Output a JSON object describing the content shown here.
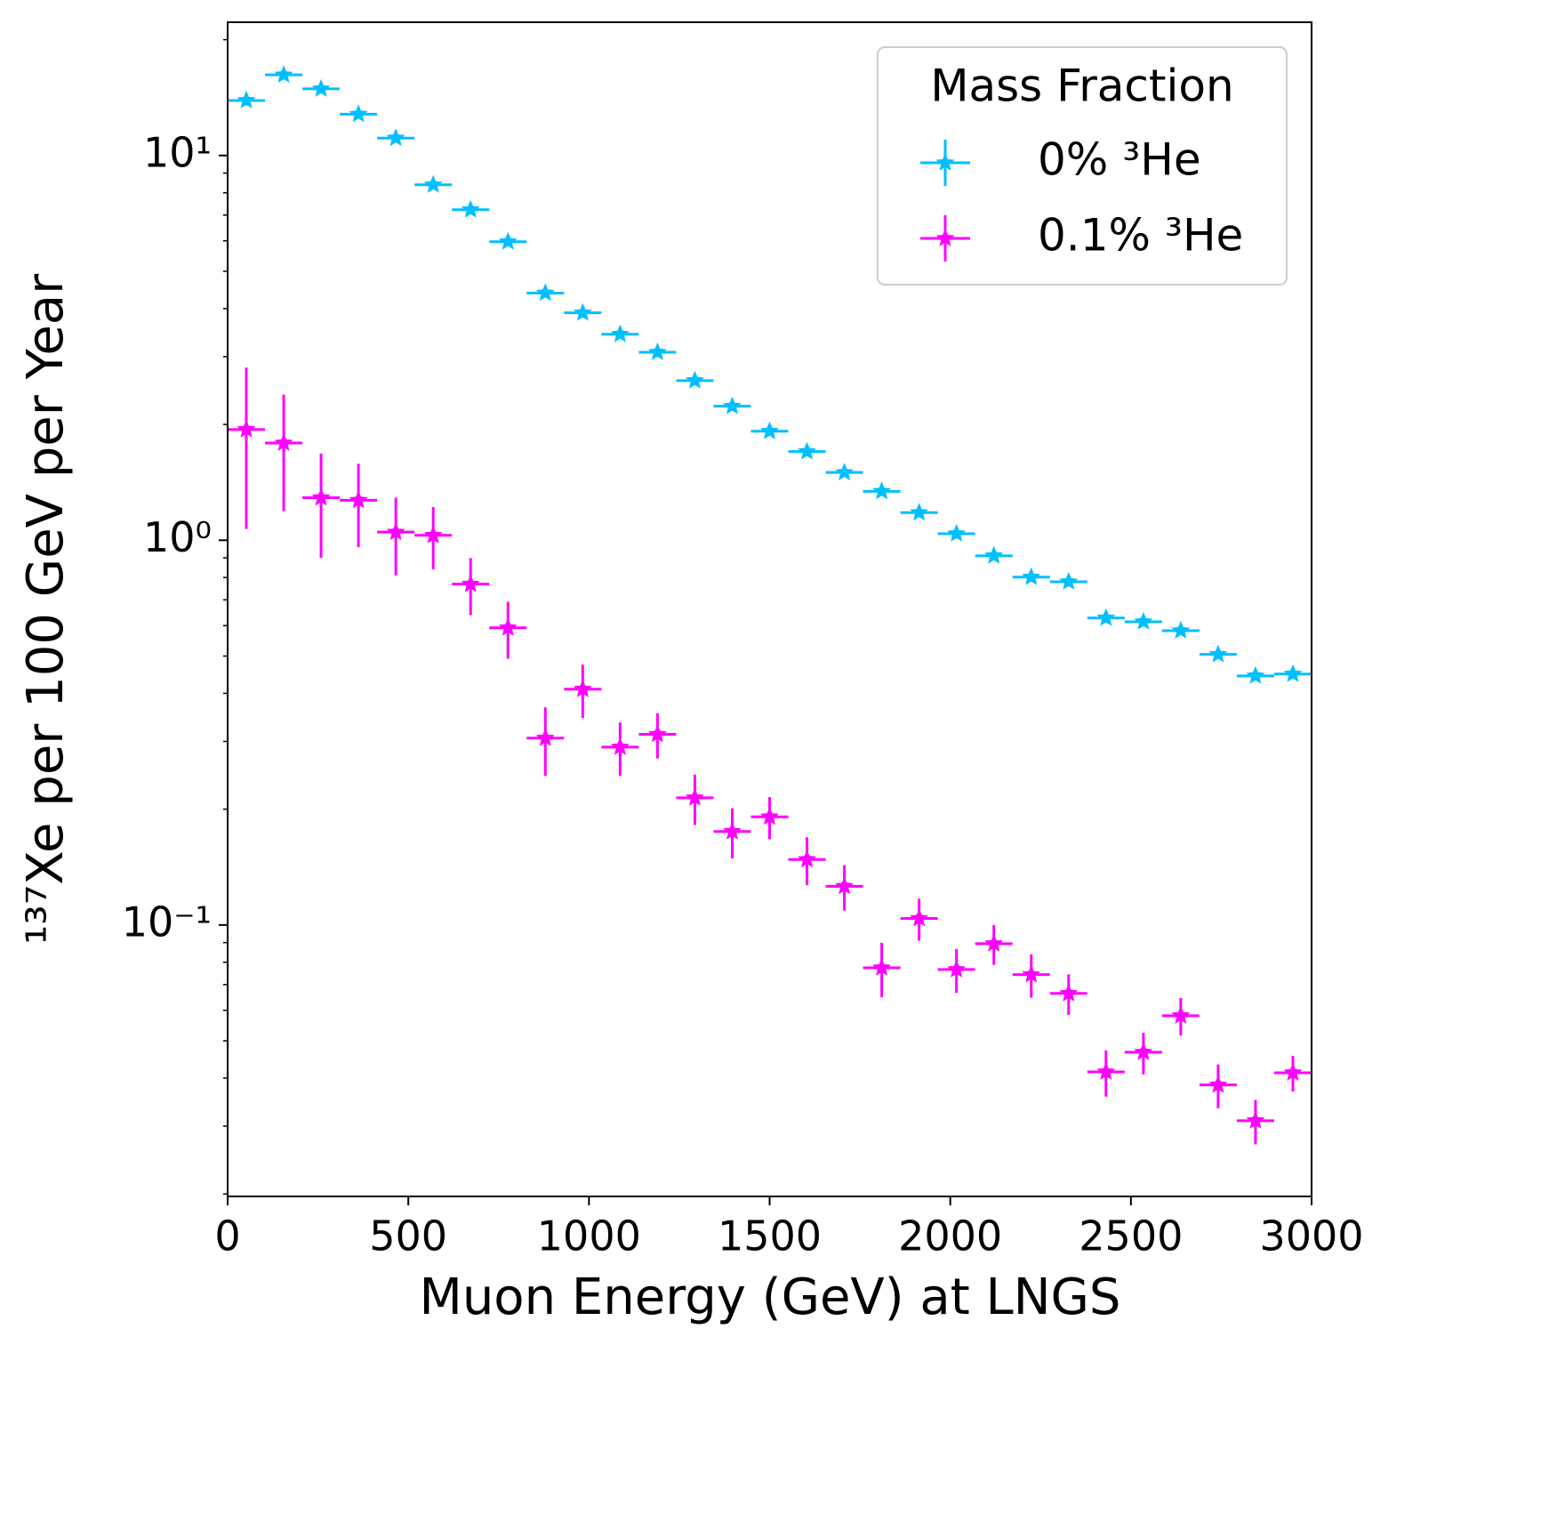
{
  "chart_data": {
    "type": "errorbar",
    "xlabel": "Muon Energy (GeV) at LNGS",
    "ylabel": "¹³⁷Xe per 100 GeV per Year",
    "log_y": true,
    "xlim": [
      0,
      3000
    ],
    "xticks": [
      0,
      500,
      1000,
      1500,
      2000,
      2500,
      3000
    ],
    "ylim": [
      0.0197,
      22.2
    ],
    "yticks": [
      {
        "value": 0.1,
        "label": "10⁻¹"
      },
      {
        "value": 1,
        "label": "10⁰"
      },
      {
        "value": 10,
        "label": "10¹"
      }
    ],
    "yticks_minor": [
      0.02,
      0.03,
      0.04,
      0.05,
      0.06,
      0.07,
      0.08,
      0.09,
      0.2,
      0.3,
      0.4,
      0.5,
      0.6,
      0.7,
      0.8,
      0.9,
      2,
      3,
      4,
      5,
      6,
      7,
      8,
      9,
      20
    ],
    "legend_title": "Mass Fraction",
    "legend_position": "upper right",
    "x": [
      51.7,
      155.2,
      258.6,
      362.1,
      465.5,
      569.0,
      672.4,
      775.9,
      879.3,
      982.8,
      1086.2,
      1189.7,
      1293.1,
      1396.6,
      1500.0,
      1603.4,
      1706.9,
      1810.3,
      1913.8,
      2017.2,
      2120.7,
      2224.1,
      2327.6,
      2431.0,
      2534.5,
      2637.9,
      2741.4,
      2844.8,
      2948.3
    ],
    "xerr": 51.7,
    "series": [
      {
        "name": "0% ³He",
        "color": "#00bfff",
        "values": [
          13.9,
          16.2,
          14.9,
          12.8,
          11.1,
          8.39,
          7.23,
          5.97,
          4.39,
          3.9,
          3.43,
          3.08,
          2.6,
          2.23,
          1.92,
          1.7,
          1.5,
          1.34,
          1.18,
          1.04,
          0.911,
          0.802,
          0.78,
          0.628,
          0.614,
          0.582,
          0.505,
          0.444,
          0.449
        ]
      },
      {
        "name": "0.1% ³He",
        "color": "#ff00ff",
        "values": [
          1.94,
          1.79,
          1.29,
          1.27,
          1.05,
          1.03,
          0.769,
          0.592,
          0.306,
          0.41,
          0.29,
          0.313,
          0.214,
          0.175,
          0.191,
          0.148,
          0.126,
          0.0774,
          0.104,
          0.0766,
          0.0894,
          0.0743,
          0.0664,
          0.0415,
          0.0467,
          0.0581,
          0.0384,
          0.031,
          0.0413
        ],
        "yerr": [
          0.87,
          0.6,
          0.39,
          0.31,
          0.24,
          0.19,
          0.13,
          0.1,
          0.062,
          0.065,
          0.046,
          0.042,
          0.032,
          0.026,
          0.024,
          0.021,
          0.017,
          0.0125,
          0.013,
          0.01,
          0.0106,
          0.0096,
          0.008,
          0.0057,
          0.0058,
          0.0065,
          0.005,
          0.0041,
          0.0044
        ]
      }
    ]
  }
}
